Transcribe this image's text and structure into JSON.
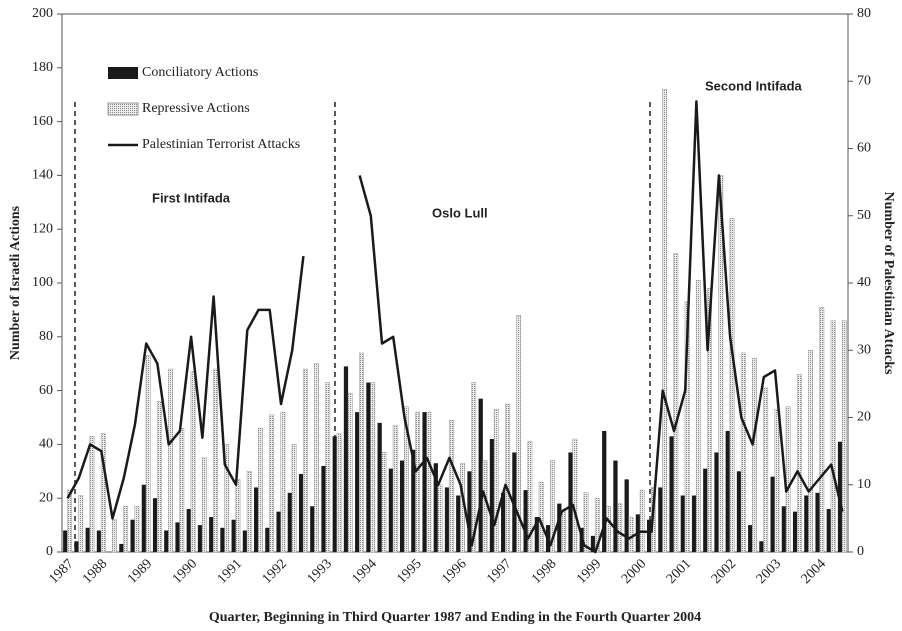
{
  "chart_data": {
    "type": "bar_line",
    "x_label": "Quarter, Beginning in Third Quarter 1987 and Ending in the Fourth Quarter 2004",
    "y_label": "Number of Israeli Actions",
    "y2_label": "Number of Palestinian Attacks",
    "annotations": [
      "First Intifada",
      "Oslo Lull",
      "Second Intifada"
    ],
    "categories": [
      "1987",
      null,
      null,
      "1988",
      null,
      null,
      null,
      "1989",
      null,
      null,
      null,
      "1990",
      null,
      null,
      null,
      "1991",
      null,
      null,
      null,
      "1992",
      null,
      null,
      null,
      "1993",
      null,
      null,
      null,
      "1994",
      null,
      null,
      null,
      "1995",
      null,
      null,
      null,
      "1996",
      null,
      null,
      null,
      "1997",
      null,
      null,
      null,
      "1998",
      null,
      null,
      null,
      "1999",
      null,
      null,
      null,
      "2000",
      null,
      null,
      null,
      "2001",
      null,
      null,
      null,
      "2002",
      null,
      null,
      null,
      "2003",
      null,
      null,
      null,
      "2004",
      null,
      null
    ],
    "series": [
      {
        "name": "Conciliatory Actions",
        "color": "#1a1a1a",
        "kind": "bar",
        "values": [
          8,
          4,
          9,
          8,
          0,
          3,
          12,
          25,
          20,
          8,
          11,
          16,
          10,
          13,
          9,
          12,
          8,
          24,
          9,
          15,
          22,
          29,
          17,
          32,
          43,
          69,
          52,
          63,
          48,
          31,
          34,
          38,
          52,
          33,
          24,
          21,
          30,
          57,
          42,
          22,
          37,
          23,
          13,
          10,
          18,
          37,
          9,
          6,
          45,
          34,
          27,
          14,
          12,
          24,
          43,
          21,
          21,
          31,
          37,
          45,
          30,
          10,
          4,
          28,
          17,
          15,
          21,
          22,
          16,
          41
        ]
      },
      {
        "name": "Repressive Actions",
        "color": "#d9d9d9",
        "kind": "bar",
        "values": [
          23,
          21,
          43,
          44,
          12,
          17,
          17,
          73,
          56,
          68,
          46,
          67,
          35,
          68,
          40,
          27,
          30,
          46,
          51,
          52,
          40,
          68,
          70,
          63,
          44,
          59,
          74,
          63,
          37,
          47,
          54,
          52,
          52,
          25,
          49,
          33,
          63,
          34,
          53,
          55,
          88,
          41,
          26,
          34,
          16,
          42,
          22,
          20,
          17,
          18,
          13,
          23,
          24,
          172,
          111,
          93,
          101,
          98,
          140,
          124,
          74,
          72,
          61,
          53,
          54,
          66,
          75,
          91,
          86,
          86
        ]
      },
      {
        "name": "Palestinian Terrorist Attacks",
        "color": "#1a1a1a",
        "kind": "line",
        "axis": "y2",
        "values": [
          8,
          11,
          16,
          15,
          5,
          11,
          19,
          31,
          28,
          16,
          18,
          32,
          17,
          38,
          13,
          10,
          33,
          36,
          36,
          22,
          30,
          44,
          null,
          null,
          null,
          null,
          56,
          50,
          31,
          32,
          20,
          12,
          14,
          10,
          14,
          10,
          1,
          9,
          4,
          10,
          6,
          2,
          5,
          1,
          6,
          7,
          1,
          0,
          5,
          3,
          2,
          3,
          3,
          24,
          18,
          24,
          67,
          30,
          56,
          32,
          20,
          16,
          26,
          27,
          9,
          12,
          9,
          11,
          13,
          6
        ]
      }
    ],
    "ylim": [
      0,
      200
    ],
    "yticks": [
      0,
      20,
      40,
      60,
      80,
      100,
      120,
      140,
      160,
      180,
      200
    ],
    "y2lim": [
      0,
      80
    ],
    "y2ticks": [
      0,
      10,
      20,
      30,
      40,
      50,
      60,
      70,
      80
    ],
    "legend": "upper left"
  }
}
